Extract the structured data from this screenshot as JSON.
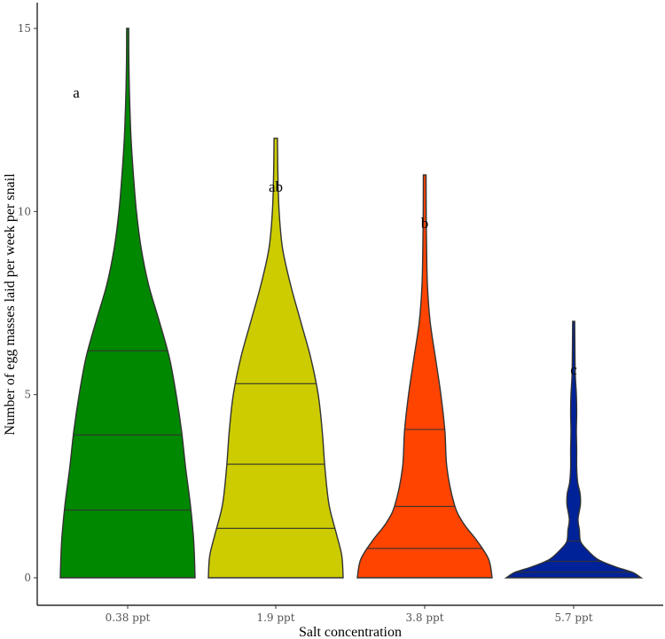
{
  "chart_data": {
    "type": "violin",
    "title": "",
    "xlabel": "Salt concentration",
    "ylabel": "Number of egg masses laid  per week per snail",
    "ylim": [
      0,
      15
    ],
    "yticks": [
      0,
      5,
      10,
      15
    ],
    "grid": false,
    "legend": "none",
    "categories": [
      "0.38 ppt",
      "1.9 ppt",
      "3.8 ppt",
      "5.7 ppt"
    ],
    "series": [
      {
        "category": "0.38 ppt",
        "color": "#008800",
        "min": 0,
        "max": 15,
        "quantiles": [
          1.85,
          3.9,
          6.2
        ],
        "significance": "a",
        "density": [
          [
            0,
            1.0
          ],
          [
            1,
            0.98
          ],
          [
            2,
            0.93
          ],
          [
            3,
            0.86
          ],
          [
            4,
            0.8
          ],
          [
            5,
            0.72
          ],
          [
            6,
            0.62
          ],
          [
            7,
            0.47
          ],
          [
            8,
            0.31
          ],
          [
            9,
            0.2
          ],
          [
            10,
            0.13
          ],
          [
            11,
            0.085
          ],
          [
            12,
            0.05
          ],
          [
            13,
            0.03
          ],
          [
            14,
            0.018
          ],
          [
            15,
            0.015
          ]
        ]
      },
      {
        "category": "1.9 ppt",
        "color": "#cccc00",
        "min": 0,
        "max": 12,
        "quantiles": [
          1.35,
          3.1,
          5.3
        ],
        "significance": "ab",
        "density": [
          [
            0,
            1.0
          ],
          [
            0.6,
            0.98
          ],
          [
            1.2,
            0.9
          ],
          [
            2,
            0.79
          ],
          [
            3,
            0.73
          ],
          [
            4,
            0.69
          ],
          [
            5,
            0.63
          ],
          [
            6,
            0.52
          ],
          [
            7,
            0.37
          ],
          [
            8,
            0.22
          ],
          [
            9,
            0.1
          ],
          [
            10,
            0.05
          ],
          [
            11,
            0.032
          ],
          [
            12,
            0.025
          ]
        ]
      },
      {
        "category": "3.8 ppt",
        "color": "#ff4400",
        "min": 0,
        "max": 11,
        "quantiles": [
          0.8,
          1.95,
          4.05
        ],
        "significance": "b",
        "density": [
          [
            0,
            1.0
          ],
          [
            0.5,
            0.95
          ],
          [
            1,
            0.78
          ],
          [
            1.5,
            0.57
          ],
          [
            2,
            0.44
          ],
          [
            3,
            0.33
          ],
          [
            4,
            0.3
          ],
          [
            5,
            0.24
          ],
          [
            6,
            0.16
          ],
          [
            7,
            0.08
          ],
          [
            8,
            0.04
          ],
          [
            9,
            0.028
          ],
          [
            10,
            0.022
          ],
          [
            11,
            0.02
          ]
        ]
      },
      {
        "category": "5.7 ppt",
        "color": "#002299",
        "min": 0,
        "max": 7,
        "quantiles": [
          0.15,
          0.45,
          1.0
        ],
        "significance": "c",
        "density": [
          [
            0,
            1.0
          ],
          [
            0.15,
            0.87
          ],
          [
            0.3,
            0.62
          ],
          [
            0.5,
            0.36
          ],
          [
            0.8,
            0.18
          ],
          [
            1,
            0.1
          ],
          [
            1.3,
            0.085
          ],
          [
            1.6,
            0.065
          ],
          [
            2,
            0.1
          ],
          [
            2.3,
            0.095
          ],
          [
            2.6,
            0.06
          ],
          [
            3,
            0.045
          ],
          [
            3.5,
            0.045
          ],
          [
            4,
            0.04
          ],
          [
            4.5,
            0.045
          ],
          [
            5,
            0.04
          ],
          [
            5.5,
            0.025
          ],
          [
            6,
            0.02
          ],
          [
            7,
            0.015
          ]
        ]
      }
    ]
  }
}
